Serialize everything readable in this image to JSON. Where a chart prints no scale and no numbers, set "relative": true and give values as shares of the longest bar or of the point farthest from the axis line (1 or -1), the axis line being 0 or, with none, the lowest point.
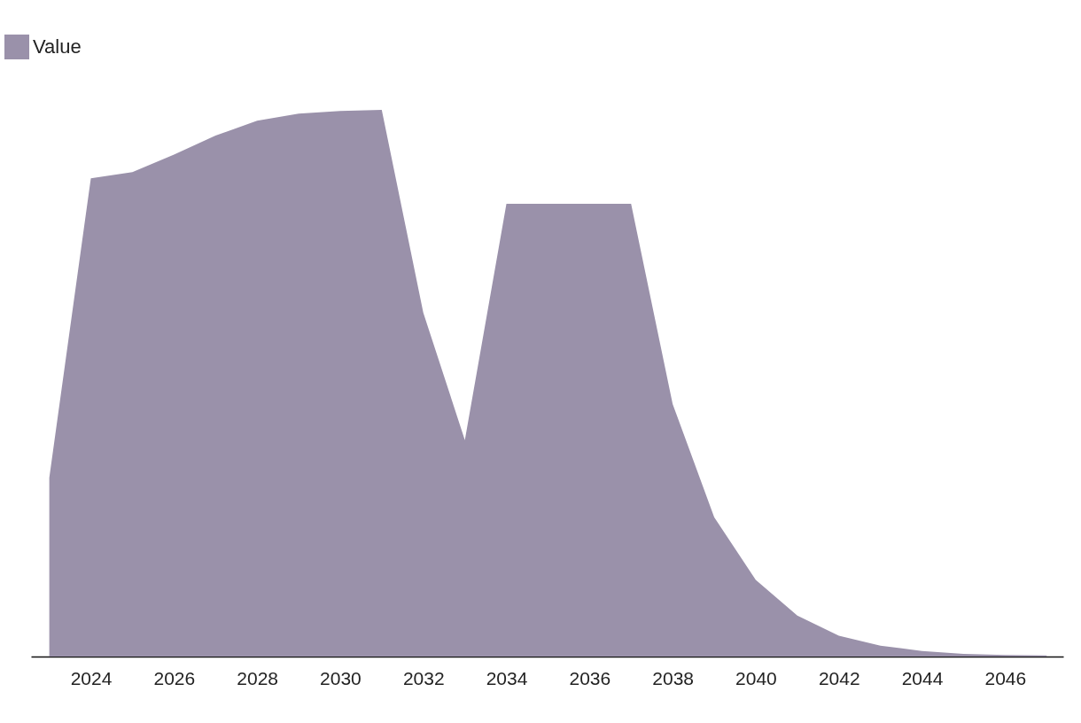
{
  "chart_data": {
    "type": "area",
    "relative": true,
    "legend": "top left",
    "grid": false,
    "x": [
      2023,
      2024,
      2025,
      2026,
      2027,
      2028,
      2029,
      2030,
      2031,
      2032,
      2033,
      2034,
      2035,
      2036,
      2037,
      2038,
      2039,
      2040,
      2041,
      2042,
      2043,
      2044,
      2045,
      2046,
      2047
    ],
    "xlim": [
      2022.56,
      2047.4
    ],
    "xticks": [
      2024,
      2026,
      2028,
      2030,
      2032,
      2034,
      2036,
      2038,
      2040,
      2042,
      2044,
      2046
    ],
    "series": [
      {
        "name": "Value",
        "color": "#9a91aa",
        "values": [
          0.327,
          0.875,
          0.886,
          0.918,
          0.953,
          0.98,
          0.993,
          0.998,
          1,
          0.629,
          0.396,
          0.828,
          0.828,
          0.828,
          0.828,
          0.462,
          0.255,
          0.14,
          0.075,
          0.038,
          0.02,
          0.01,
          0.005,
          0.003,
          0.002
        ]
      }
    ]
  }
}
